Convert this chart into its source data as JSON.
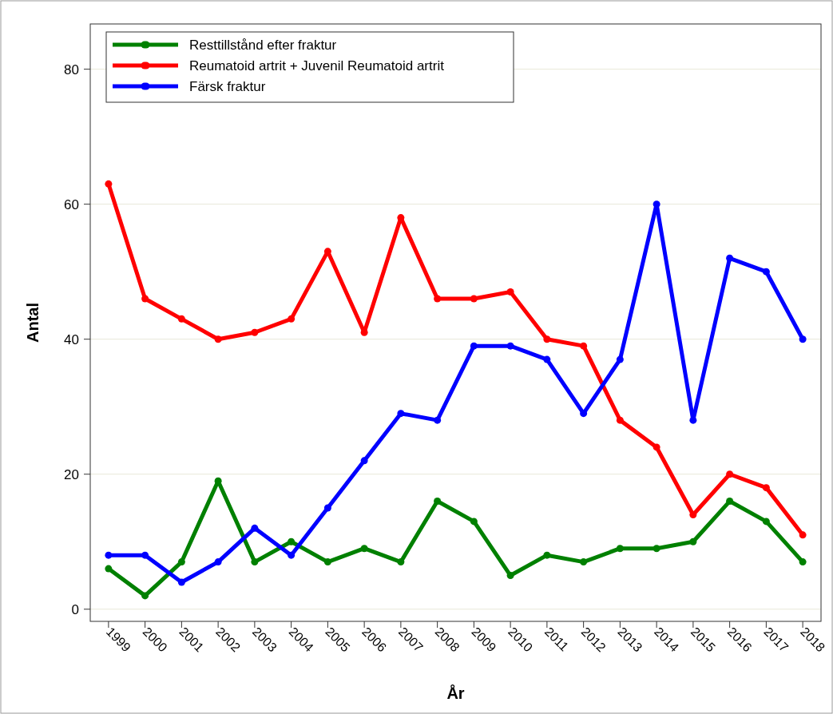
{
  "chart_data": {
    "type": "line",
    "xlabel": "År",
    "ylabel": "Antal",
    "categories": [
      "1999",
      "2000",
      "2001",
      "2002",
      "2003",
      "2004",
      "2005",
      "2006",
      "2007",
      "2008",
      "2009",
      "2010",
      "2011",
      "2012",
      "2013",
      "2014",
      "2015",
      "2016",
      "2017",
      "2018"
    ],
    "series": [
      {
        "name": "Resttillstånd efter fraktur",
        "color": "#008000",
        "values": [
          6,
          2,
          7,
          19,
          7,
          10,
          7,
          9,
          7,
          16,
          13,
          5,
          8,
          7,
          9,
          9,
          10,
          16,
          13,
          7
        ]
      },
      {
        "name": "Reumatoid artrit + Juvenil Reumatoid artrit",
        "color": "#ff0000",
        "values": [
          63,
          46,
          43,
          40,
          41,
          43,
          53,
          41,
          58,
          46,
          46,
          47,
          40,
          39,
          28,
          24,
          14,
          20,
          18,
          11
        ]
      },
      {
        "name": "Färsk fraktur",
        "color": "#0000ff",
        "values": [
          8,
          8,
          4,
          7,
          12,
          8,
          15,
          22,
          29,
          28,
          39,
          39,
          37,
          29,
          37,
          60,
          28,
          52,
          50,
          40
        ]
      }
    ],
    "ylim": [
      -1.8,
      86.7
    ],
    "yticks": [
      0,
      20,
      40,
      60,
      80
    ],
    "grid": "y",
    "legend": "top left",
    "marker": "circle",
    "line_style": "solid"
  }
}
